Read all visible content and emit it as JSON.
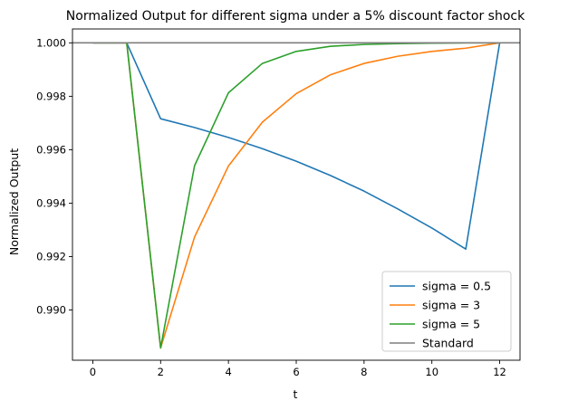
{
  "chart_data": {
    "type": "line",
    "title": "Normalized Output for different sigma under a 5% discount factor shock",
    "xlabel": "t",
    "ylabel": "Normalized Output",
    "xlim": [
      -0.6,
      12.6
    ],
    "ylim": [
      0.98812,
      1.00052
    ],
    "xticks": [
      "0",
      "2",
      "4",
      "6",
      "8",
      "10",
      "12"
    ],
    "yticks": [
      "0.990",
      "0.992",
      "0.994",
      "0.996",
      "0.998",
      "1.000"
    ],
    "grid": false,
    "legend_position": "lower-right",
    "x": [
      0,
      1,
      2,
      3,
      4,
      5,
      6,
      7,
      8,
      9,
      10,
      11,
      12
    ],
    "series": [
      {
        "name": "sigma = 0.5",
        "color": "#1f77b4",
        "values": [
          1.0,
          1.0,
          0.99716,
          0.99683,
          0.99646,
          0.99604,
          0.99557,
          0.99504,
          0.99445,
          0.99378,
          0.99307,
          0.99228,
          1.0
        ]
      },
      {
        "name": "sigma = 3",
        "color": "#ff7f0e",
        "values": [
          1.0,
          1.0,
          0.98858,
          0.99273,
          0.99539,
          0.99703,
          0.9981,
          0.9988,
          0.99923,
          0.9995,
          0.99968,
          0.9998,
          1.0
        ]
      },
      {
        "name": "sigma = 5",
        "color": "#2ca02c",
        "values": [
          1.0,
          1.0,
          0.98858,
          0.9954,
          0.99813,
          0.99923,
          0.99968,
          0.99987,
          0.99994,
          0.99997,
          0.99999,
          1.0,
          1.0
        ]
      },
      {
        "name": "Standard",
        "color": "#7f7f7f",
        "hline": 1.0
      }
    ]
  }
}
